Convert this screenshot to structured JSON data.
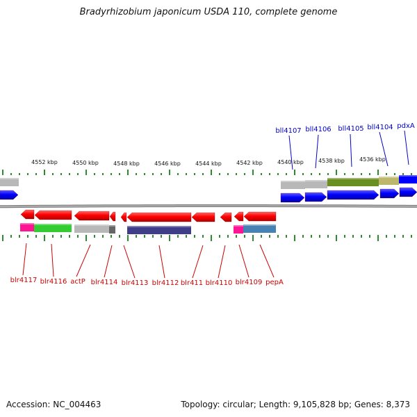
{
  "title": "Bradyrhizobium japonicum USDA 110, complete genome",
  "footer": {
    "accession": "Accession: NC_004463",
    "info": "Topology: circular; Length: 9,105,828 bp; Genes: 8,373"
  },
  "colors": {
    "axis": "#808080",
    "tick": "#2e8b2e",
    "kbp_label": "#111111",
    "reverse_label": "#0000cc",
    "forward_label": "#cc0000",
    "forward_gene": "#ff0000",
    "reverse_gene": "#0000ff"
  },
  "scale": {
    "labels": [
      "4552 kbp",
      "4550 kbp",
      "4548 kbp",
      "4546 kbp",
      "4544 kbp",
      "4542 kbp",
      "4540 kbp",
      "4538 kbp",
      "4536 kbp"
    ]
  },
  "reverse_strand": {
    "gene_labels": [
      "bll4107",
      "bll4106",
      "bll4105",
      "bll4104",
      "pdxA"
    ],
    "category_colors": [
      "#b8b8b8",
      "#b8b8b8",
      "#b8b8b8",
      "#6b8e23",
      "#bdb76b",
      "#0000ff"
    ]
  },
  "forward_strand": {
    "gene_labels": [
      "blr4117",
      "blr4116",
      "actP",
      "blr4114",
      "blr4113",
      "blr4112",
      "blr411",
      "blr4110",
      "blr4109",
      "pepA"
    ],
    "category_colors": [
      "#ff1493",
      "#33cc33",
      "#b8b8b8",
      "#666666",
      "#3d3d8c",
      "#ff1493",
      "#4682b4"
    ]
  }
}
